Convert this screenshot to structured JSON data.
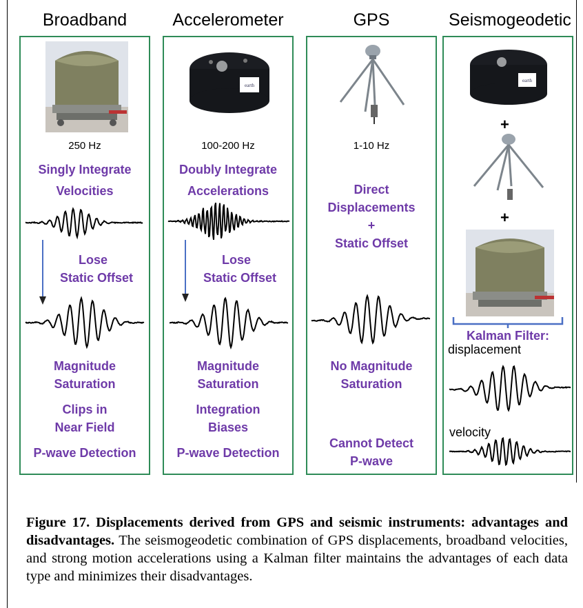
{
  "columns": {
    "broadband": {
      "title": "Broadband",
      "freq": "250 Hz",
      "method": [
        "Singly Integrate",
        "Velocities"
      ],
      "lose": [
        "Lose",
        "Static Offset"
      ],
      "cons": [
        "Magnitude",
        "Saturation",
        "Clips in",
        "Near Field",
        "P-wave Detection"
      ]
    },
    "accelerometer": {
      "title": "Accelerometer",
      "freq": "100-200 Hz",
      "method": [
        "Doubly Integrate",
        "Accelerations"
      ],
      "lose": [
        "Lose",
        "Static Offset"
      ],
      "cons": [
        "Magnitude",
        "Saturation",
        "Integration",
        "Biases",
        "P-wave Detection"
      ],
      "device_label": "earth scope"
    },
    "gps": {
      "title": "GPS",
      "freq": "1-10 Hz",
      "method": [
        "Direct",
        "Displacements",
        "+",
        "Static Offset"
      ],
      "cons": [
        "No Magnitude",
        "Saturation",
        "Cannot Detect",
        "P-wave"
      ]
    },
    "seismogeodetic": {
      "title": "Seismogeodetic",
      "plus": "+",
      "filter": "Kalman Filter:",
      "displacement": "displacement",
      "velocity": "velocity",
      "device_label": "earth scope"
    }
  },
  "caption": {
    "bold": "Figure 17. Displacements derived from GPS and seismic instruments: advantages and disadvantages.",
    "text": " The seismogeodetic combination of GPS displacements, broadband velocities, and strong motion accelerations using a Kalman filter maintains the advantages of each data type and minimizes their disadvantages."
  },
  "colors": {
    "panel_border": "#2e8b57",
    "label_text": "#6e3aa8",
    "arrow": "#4a6fc4",
    "bracket": "#4a6fc4"
  }
}
